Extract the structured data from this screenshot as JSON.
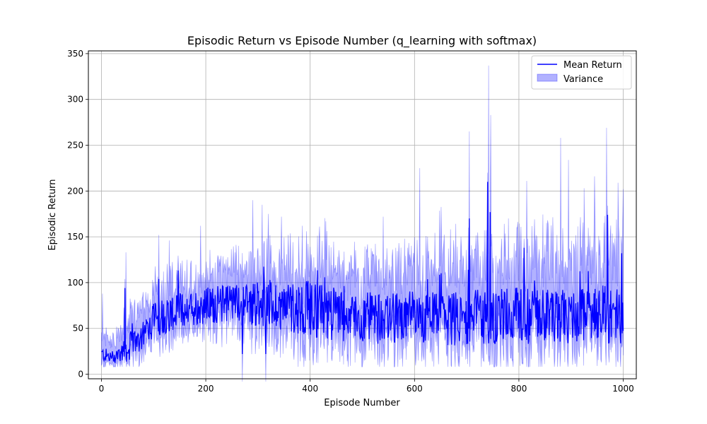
{
  "chart_data": {
    "type": "line",
    "title": "Episodic Return vs Episode Number (q_learning with softmax)",
    "xlabel": "Episode Number",
    "ylabel": "Episodic Return",
    "xlim": [
      -25,
      1025
    ],
    "ylim": [
      -5,
      353
    ],
    "xticks": [
      0,
      200,
      400,
      600,
      800,
      1000
    ],
    "yticks": [
      0,
      50,
      100,
      150,
      200,
      250,
      300,
      350
    ],
    "xtick_labels": [
      "0",
      "200",
      "400",
      "600",
      "800",
      "1000"
    ],
    "ytick_labels": [
      "0",
      "50",
      "100",
      "150",
      "200",
      "250",
      "300",
      "350"
    ],
    "grid": true,
    "legend_position": "top-right",
    "legend": [
      "Mean Return",
      "Variance"
    ],
    "colors": {
      "mean": "#0000ff",
      "band": "#0000ff",
      "grid": "#b0b0b0"
    },
    "series": [
      {
        "name": "Mean Return",
        "x_range": [
          0,
          1000
        ],
        "shape": {
          "x": [
            0,
            20,
            50,
            80,
            100,
            150,
            200,
            250,
            300,
            350,
            400,
            450,
            500,
            550,
            600,
            650,
            700,
            750,
            800,
            850,
            900,
            950,
            1000
          ],
          "y": [
            22,
            18,
            28,
            45,
            60,
            70,
            75,
            78,
            78,
            75,
            72,
            65,
            62,
            60,
            62,
            60,
            62,
            63,
            65,
            63,
            62,
            65,
            65
          ],
          "amp": [
            8,
            8,
            15,
            18,
            20,
            20,
            20,
            22,
            25,
            28,
            30,
            30,
            28,
            28,
            30,
            30,
            30,
            30,
            32,
            30,
            30,
            32,
            32
          ]
        },
        "peaks": [
          [
            45,
            94
          ],
          [
            110,
            104
          ],
          [
            270,
            22
          ],
          [
            315,
            22
          ],
          [
            705,
            170
          ],
          [
            740,
            210
          ],
          [
            745,
            177
          ],
          [
            810,
            138
          ],
          [
            970,
            174
          ],
          [
            997,
            132
          ]
        ]
      },
      {
        "name": "Variance",
        "type": "band",
        "alpha": 0.3,
        "envelope": {
          "x": [
            0,
            20,
            50,
            80,
            100,
            150,
            200,
            250,
            300,
            350,
            400,
            450,
            500,
            550,
            600,
            650,
            700,
            750,
            800,
            850,
            900,
            950,
            1000
          ],
          "upper": [
            45,
            40,
            60,
            80,
            95,
            105,
            110,
            120,
            125,
            125,
            125,
            120,
            115,
            115,
            120,
            120,
            125,
            130,
            135,
            130,
            130,
            135,
            140
          ],
          "lower": [
            10,
            8,
            15,
            25,
            40,
            48,
            52,
            55,
            50,
            45,
            38,
            32,
            30,
            30,
            30,
            30,
            30,
            30,
            30,
            30,
            30,
            30,
            30
          ]
        },
        "spikes": [
          [
            2,
            88
          ],
          [
            47,
            133
          ],
          [
            110,
            152
          ],
          [
            130,
            146
          ],
          [
            190,
            162
          ],
          [
            290,
            190
          ],
          [
            308,
            185
          ],
          [
            320,
            175
          ],
          [
            345,
            172
          ],
          [
            385,
            162
          ],
          [
            430,
            167
          ],
          [
            540,
            172
          ],
          [
            610,
            225
          ],
          [
            705,
            265
          ],
          [
            742,
            337
          ],
          [
            746,
            283
          ],
          [
            780,
            170
          ],
          [
            815,
            211
          ],
          [
            880,
            258
          ],
          [
            895,
            234
          ],
          [
            925,
            203
          ],
          [
            945,
            216
          ],
          [
            968,
            269
          ],
          [
            990,
            209
          ],
          [
            1000,
            202
          ]
        ]
      }
    ]
  }
}
